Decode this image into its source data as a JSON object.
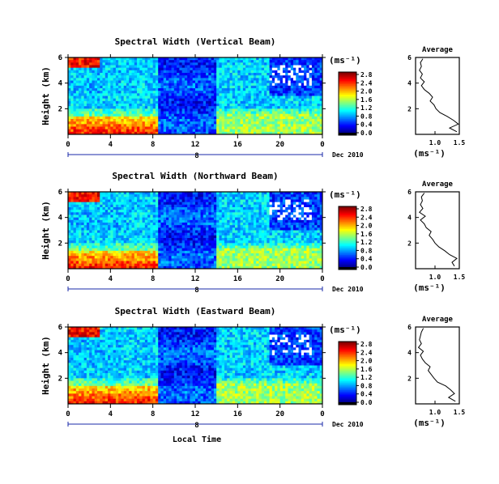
{
  "figure": {
    "x_axis_label": "Local Time",
    "date_label": "Dec 2010",
    "day_label": "8",
    "colorbar_title": "(ms⁻¹)",
    "colorbar_ticks": [
      "2.8",
      "2.4",
      "2.0",
      "1.6",
      "1.2",
      "0.8",
      "0.4",
      "0.0"
    ],
    "avg_title": "Average",
    "avg_unit": "(ms⁻¹)",
    "avg_x_ticks": [
      "1.0",
      "1.5"
    ]
  },
  "chart_data": [
    {
      "type": "heatmap",
      "title": "Spectral Width (Vertical Beam)",
      "xlabel": "",
      "ylabel": "Height (km)",
      "x_ticks": [
        "0",
        "4",
        "8",
        "12",
        "16",
        "20",
        "0"
      ],
      "y_ticks": [
        "2",
        "4",
        "6"
      ],
      "xlim": [
        0,
        24
      ],
      "ylim": [
        0,
        6
      ],
      "colorbar": {
        "min": 0.0,
        "max": 3.0,
        "unit": "ms^-1"
      },
      "average_profile": {
        "xlabel": "(ms^-1)",
        "xlim": [
          0.6,
          1.5
        ],
        "ylim": [
          0,
          6
        ],
        "x_ticks": [
          "1.0",
          "1.5"
        ],
        "y_ticks": [
          "2",
          "4",
          "6"
        ],
        "height": [
          0.2,
          0.5,
          0.8,
          1.1,
          1.4,
          1.7,
          2.0,
          2.3,
          2.6,
          2.9,
          3.2,
          3.5,
          3.8,
          4.1,
          4.4,
          4.7,
          5.0,
          5.3,
          5.6,
          5.9
        ],
        "value": [
          1.45,
          1.3,
          1.48,
          1.38,
          1.25,
          1.1,
          1.02,
          0.98,
          0.9,
          0.95,
          0.88,
          0.78,
          0.72,
          0.78,
          0.7,
          0.74,
          0.68,
          0.72,
          0.7,
          0.75
        ]
      }
    },
    {
      "type": "heatmap",
      "title": "Spectral Width (Northward Beam)",
      "xlabel": "",
      "ylabel": "Height (km)",
      "x_ticks": [
        "0",
        "4",
        "8",
        "12",
        "16",
        "20",
        "0"
      ],
      "y_ticks": [
        "2",
        "4",
        "6"
      ],
      "xlim": [
        0,
        24
      ],
      "ylim": [
        0,
        6
      ],
      "colorbar": {
        "min": 0.0,
        "max": 3.0,
        "unit": "ms^-1"
      },
      "average_profile": {
        "xlabel": "(ms^-1)",
        "xlim": [
          0.6,
          1.5
        ],
        "ylim": [
          0,
          6
        ],
        "x_ticks": [
          "1.0",
          "1.5"
        ],
        "y_ticks": [
          "2",
          "4",
          "6"
        ],
        "height": [
          0.2,
          0.5,
          0.8,
          1.1,
          1.4,
          1.7,
          2.0,
          2.3,
          2.6,
          2.9,
          3.2,
          3.5,
          3.8,
          4.1,
          4.4,
          4.7,
          5.0,
          5.3,
          5.6,
          5.9
        ],
        "value": [
          1.4,
          1.35,
          1.45,
          1.3,
          1.2,
          1.08,
          1.0,
          0.95,
          0.88,
          0.92,
          0.82,
          0.78,
          0.7,
          0.8,
          0.68,
          0.75,
          0.7,
          0.74,
          0.72,
          0.78
        ]
      }
    },
    {
      "type": "heatmap",
      "title": "Spectral Width (Eastward Beam)",
      "xlabel": "Local Time",
      "ylabel": "Height (km)",
      "x_ticks": [
        "0",
        "4",
        "8",
        "12",
        "16",
        "20",
        "0"
      ],
      "y_ticks": [
        "2",
        "4",
        "6"
      ],
      "xlim": [
        0,
        24
      ],
      "ylim": [
        0,
        6
      ],
      "colorbar": {
        "min": 0.0,
        "max": 3.0,
        "unit": "ms^-1"
      },
      "average_profile": {
        "xlabel": "(ms^-1)",
        "xlim": [
          0.6,
          1.5
        ],
        "ylim": [
          0,
          6
        ],
        "x_ticks": [
          "1.0",
          "1.5"
        ],
        "y_ticks": [
          "2",
          "4",
          "6"
        ],
        "height": [
          0.2,
          0.5,
          0.8,
          1.1,
          1.4,
          1.7,
          2.0,
          2.3,
          2.6,
          2.9,
          3.2,
          3.5,
          3.8,
          4.1,
          4.4,
          4.7,
          5.0,
          5.3,
          5.6,
          5.9
        ],
        "value": [
          1.42,
          1.28,
          1.4,
          1.32,
          1.22,
          1.05,
          0.98,
          0.92,
          0.86,
          0.9,
          0.8,
          0.74,
          0.7,
          0.76,
          0.66,
          0.72,
          0.68,
          0.7,
          0.72,
          0.76
        ]
      }
    }
  ]
}
